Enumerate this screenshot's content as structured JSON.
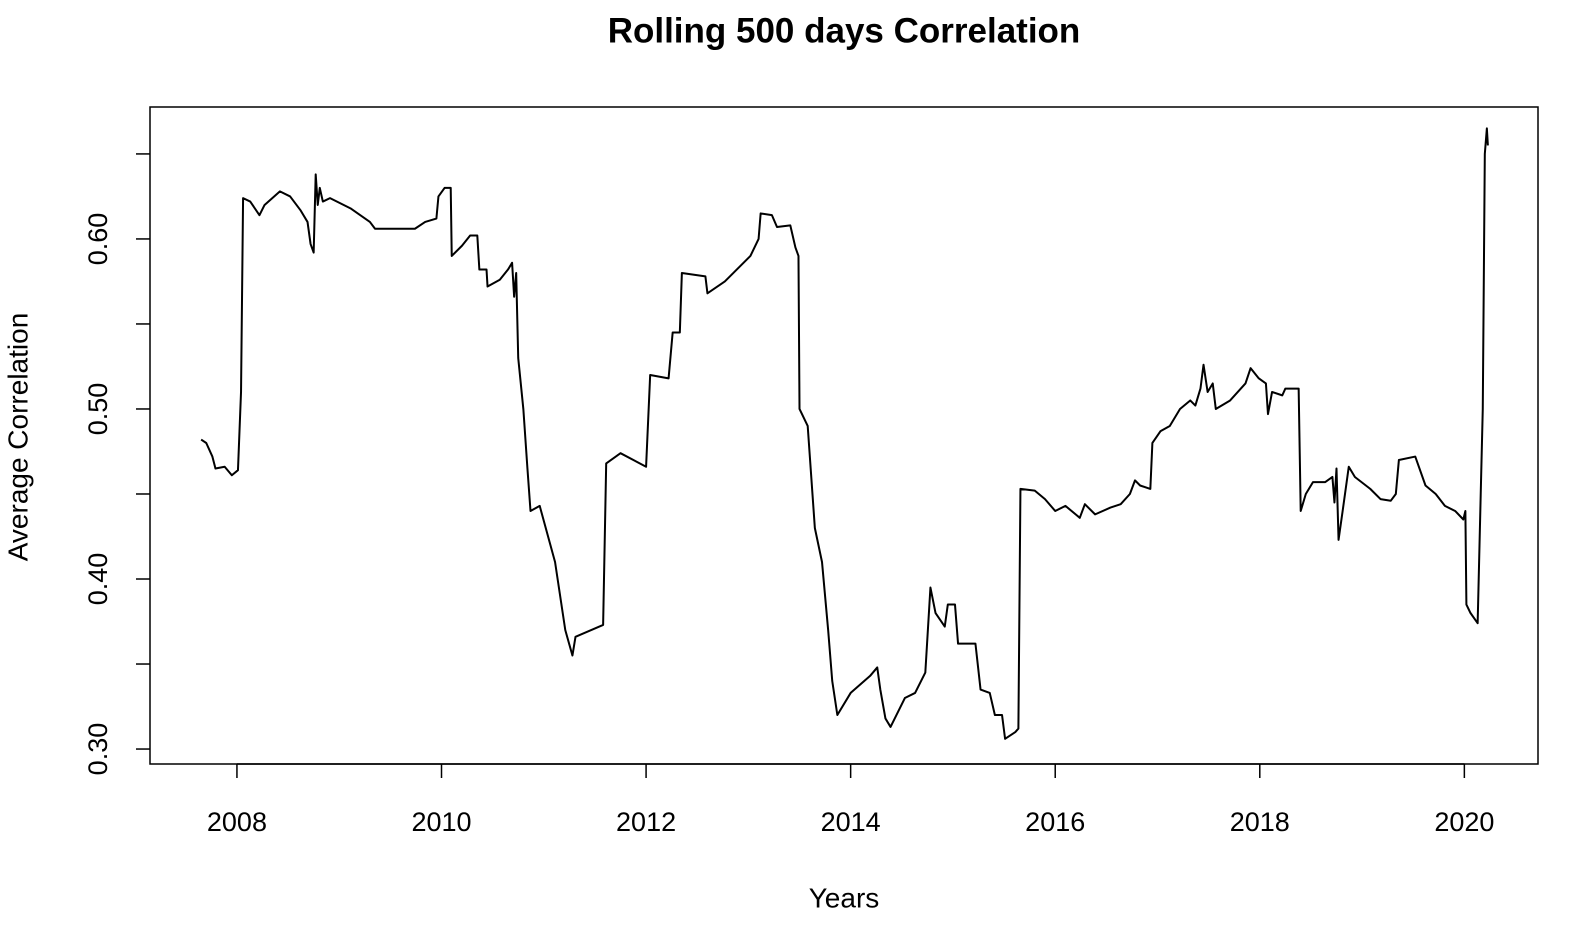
{
  "chart_data": {
    "type": "line",
    "title": "Rolling 500 days Correlation",
    "x_label": "Years",
    "y_label": "Average Correlation",
    "color": "#000000",
    "xlim": [
      2007.15,
      2020.72
    ],
    "xticks": [
      2008,
      2010,
      2012,
      2014,
      2016,
      2018,
      2020
    ],
    "ylim": [
      0.2912,
      0.6776
    ],
    "yticks": [
      {
        "value": 0.3,
        "label": "0.30"
      },
      {
        "value": 0.4,
        "label": "0.40"
      },
      {
        "value": 0.5,
        "label": "0.50"
      },
      {
        "value": 0.6,
        "label": "0.60"
      }
    ],
    "yminor_ticks": [
      0.35,
      0.45,
      0.55,
      0.65
    ],
    "x": [
      2007.65,
      2007.7,
      2007.76,
      2007.79,
      2007.88,
      2007.95,
      2008.01,
      2008.04,
      2008.06,
      2008.13,
      2008.22,
      2008.27,
      2008.42,
      2008.52,
      2008.62,
      2008.69,
      2008.72,
      2008.75,
      2008.77,
      2008.79,
      2008.81,
      2008.84,
      2008.91,
      2009.11,
      2009.3,
      2009.35,
      2009.55,
      2009.74,
      2009.84,
      2009.95,
      2009.97,
      2010.03,
      2010.09,
      2010.1,
      2010.2,
      2010.28,
      2010.35,
      2010.37,
      2010.44,
      2010.45,
      2010.57,
      2010.65,
      2010.69,
      2010.71,
      2010.73,
      2010.75,
      2010.8,
      2010.84,
      2010.87,
      2010.96,
      2011.11,
      2011.21,
      2011.28,
      2011.31,
      2011.58,
      2011.61,
      2011.75,
      2012.0,
      2012.04,
      2012.22,
      2012.26,
      2012.33,
      2012.35,
      2012.58,
      2012.6,
      2012.77,
      2013.02,
      2013.1,
      2013.12,
      2013.23,
      2013.28,
      2013.41,
      2013.46,
      2013.49,
      2013.5,
      2013.58,
      2013.65,
      2013.72,
      2013.78,
      2013.82,
      2013.87,
      2014.0,
      2014.19,
      2014.26,
      2014.29,
      2014.34,
      2014.39,
      2014.53,
      2014.63,
      2014.73,
      2014.78,
      2014.83,
      2014.92,
      2014.95,
      2015.02,
      2015.05,
      2015.22,
      2015.27,
      2015.36,
      2015.41,
      2015.48,
      2015.51,
      2015.61,
      2015.64,
      2015.66,
      2015.8,
      2015.9,
      2016.0,
      2016.1,
      2016.2,
      2016.24,
      2016.29,
      2016.39,
      2016.54,
      2016.64,
      2016.73,
      2016.78,
      2016.83,
      2016.93,
      2016.95,
      2017.03,
      2017.12,
      2017.22,
      2017.32,
      2017.37,
      2017.42,
      2017.45,
      2017.49,
      2017.54,
      2017.57,
      2017.71,
      2017.86,
      2017.91,
      2017.99,
      2018.06,
      2018.08,
      2018.12,
      2018.22,
      2018.25,
      2018.38,
      2018.4,
      2018.45,
      2018.52,
      2018.64,
      2018.71,
      2018.73,
      2018.75,
      2018.77,
      2018.81,
      2018.87,
      2018.93,
      2019.08,
      2019.18,
      2019.28,
      2019.33,
      2019.36,
      2019.52,
      2019.62,
      2019.72,
      2019.81,
      2019.91,
      2019.99,
      2020.01,
      2020.02,
      2020.06,
      2020.13,
      2020.16,
      2020.18,
      2020.2,
      2020.22,
      2020.23
    ],
    "values": [
      0.482,
      0.48,
      0.472,
      0.465,
      0.466,
      0.461,
      0.464,
      0.51,
      0.624,
      0.622,
      0.614,
      0.62,
      0.628,
      0.625,
      0.617,
      0.61,
      0.597,
      0.592,
      0.638,
      0.62,
      0.63,
      0.622,
      0.624,
      0.618,
      0.61,
      0.606,
      0.606,
      0.606,
      0.61,
      0.612,
      0.625,
      0.63,
      0.63,
      0.59,
      0.596,
      0.602,
      0.602,
      0.582,
      0.582,
      0.572,
      0.576,
      0.582,
      0.586,
      0.566,
      0.58,
      0.53,
      0.5,
      0.465,
      0.44,
      0.443,
      0.41,
      0.37,
      0.355,
      0.366,
      0.373,
      0.468,
      0.474,
      0.466,
      0.52,
      0.518,
      0.545,
      0.545,
      0.58,
      0.578,
      0.568,
      0.575,
      0.59,
      0.6,
      0.615,
      0.614,
      0.607,
      0.608,
      0.595,
      0.59,
      0.5,
      0.49,
      0.43,
      0.41,
      0.37,
      0.34,
      0.32,
      0.333,
      0.343,
      0.348,
      0.335,
      0.318,
      0.313,
      0.33,
      0.333,
      0.345,
      0.395,
      0.38,
      0.372,
      0.385,
      0.385,
      0.362,
      0.362,
      0.335,
      0.333,
      0.32,
      0.32,
      0.306,
      0.31,
      0.312,
      0.453,
      0.452,
      0.447,
      0.44,
      0.443,
      0.438,
      0.436,
      0.444,
      0.438,
      0.442,
      0.444,
      0.45,
      0.458,
      0.455,
      0.453,
      0.48,
      0.487,
      0.49,
      0.5,
      0.505,
      0.502,
      0.512,
      0.526,
      0.51,
      0.515,
      0.5,
      0.505,
      0.515,
      0.524,
      0.518,
      0.515,
      0.497,
      0.51,
      0.508,
      0.512,
      0.512,
      0.44,
      0.45,
      0.457,
      0.457,
      0.46,
      0.445,
      0.465,
      0.423,
      0.44,
      0.466,
      0.46,
      0.453,
      0.447,
      0.446,
      0.45,
      0.47,
      0.472,
      0.455,
      0.45,
      0.443,
      0.44,
      0.435,
      0.44,
      0.385,
      0.38,
      0.374,
      0.45,
      0.5,
      0.65,
      0.665,
      0.655
    ]
  }
}
